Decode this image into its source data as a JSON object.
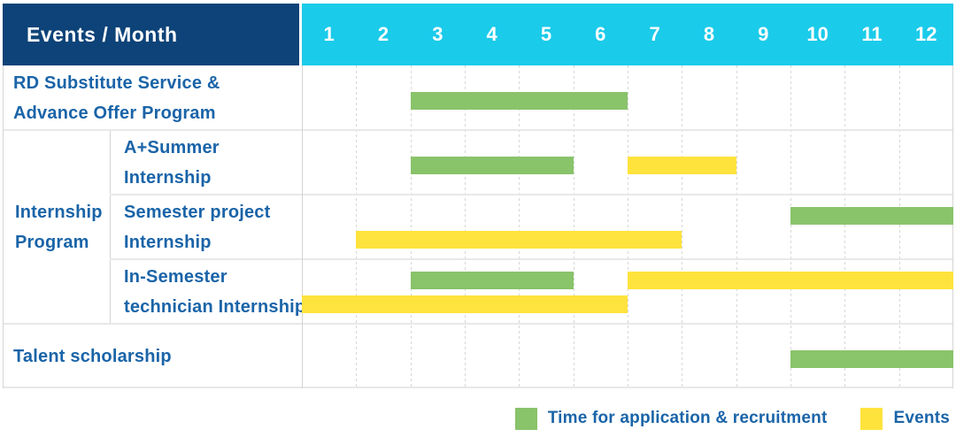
{
  "header": {
    "title": "Events / Month",
    "months": [
      "1",
      "2",
      "3",
      "4",
      "5",
      "6",
      "7",
      "8",
      "9",
      "10",
      "11",
      "12"
    ]
  },
  "group": {
    "key": "internship-program",
    "label_lines": [
      "Internship",
      "Program"
    ]
  },
  "rows": [
    {
      "key": "rd-substitute",
      "in_group": false,
      "label_lines": [
        "RD Substitute Service &",
        "Advance Offer Program"
      ],
      "bars": [
        {
          "kind": "application",
          "start": 3,
          "end": 6,
          "line": 1
        }
      ]
    },
    {
      "key": "a-plus-summer",
      "in_group": true,
      "label_lines": [
        "A+Summer",
        "Internship"
      ],
      "bars": [
        {
          "kind": "application",
          "start": 3,
          "end": 5,
          "line": 1
        },
        {
          "kind": "events",
          "start": 7,
          "end": 8,
          "line": 1
        }
      ]
    },
    {
      "key": "semester-project",
      "in_group": true,
      "label_lines": [
        "Semester project",
        "Internship"
      ],
      "bars": [
        {
          "kind": "application",
          "start": 10,
          "end": 12,
          "line": 1
        },
        {
          "kind": "events",
          "start": 2,
          "end": 7,
          "line": 2
        }
      ]
    },
    {
      "key": "in-semester-technician",
      "in_group": true,
      "label_lines": [
        "In-Semester",
        "technician Internship"
      ],
      "bars": [
        {
          "kind": "application",
          "start": 3,
          "end": 5,
          "line": 1
        },
        {
          "kind": "events",
          "start": 7,
          "end": 12,
          "line": 1
        },
        {
          "kind": "events",
          "start": 1,
          "end": 6,
          "line": 2
        }
      ]
    },
    {
      "key": "talent-scholarship",
      "in_group": false,
      "label_lines": [
        "Talent scholarship"
      ],
      "bars": [
        {
          "kind": "application",
          "start": 10,
          "end": 12,
          "line": 1
        }
      ]
    }
  ],
  "legend": {
    "items": [
      {
        "kind": "application",
        "label": "Time for application & recruitment"
      },
      {
        "kind": "events",
        "label": "Events"
      }
    ]
  },
  "colors": {
    "application": "#89C36A",
    "events": "#FFE33D",
    "header_navy": "#0D4378",
    "header_cyan": "#1BCBEA",
    "label_text": "#1A64A8"
  },
  "chart_data": {
    "type": "bar",
    "subtype": "gantt-schedule",
    "title": "Events / Month",
    "x_axis": {
      "label": "Month",
      "ticks": [
        "1",
        "2",
        "3",
        "4",
        "5",
        "6",
        "7",
        "8",
        "9",
        "10",
        "11",
        "12"
      ],
      "range": [
        1,
        12
      ]
    },
    "legend": [
      "Time for application & recruitment",
      "Events"
    ],
    "legend_position": "bottom-right",
    "grid": "vertical dashed month lines",
    "tasks": [
      {
        "row": "RD Substitute Service & Advance Offer Program",
        "bars": [
          {
            "series": "Time for application & recruitment",
            "start_month": 3,
            "end_month": 6
          }
        ]
      },
      {
        "row": "Internship Program — A+Summer Internship",
        "bars": [
          {
            "series": "Time for application & recruitment",
            "start_month": 3,
            "end_month": 5
          },
          {
            "series": "Events",
            "start_month": 7,
            "end_month": 8
          }
        ]
      },
      {
        "row": "Internship Program — Semester project Internship",
        "bars": [
          {
            "series": "Time for application & recruitment",
            "start_month": 10,
            "end_month": 12
          },
          {
            "series": "Events",
            "start_month": 2,
            "end_month": 7
          }
        ]
      },
      {
        "row": "Internship Program — In-Semester technician Internship",
        "bars": [
          {
            "series": "Time for application & recruitment",
            "start_month": 3,
            "end_month": 5
          },
          {
            "series": "Events",
            "start_month": 7,
            "end_month": 12
          },
          {
            "series": "Events",
            "start_month": 1,
            "end_month": 6
          }
        ]
      },
      {
        "row": "Talent scholarship",
        "bars": [
          {
            "series": "Time for application & recruitment",
            "start_month": 10,
            "end_month": 12
          }
        ]
      }
    ]
  }
}
